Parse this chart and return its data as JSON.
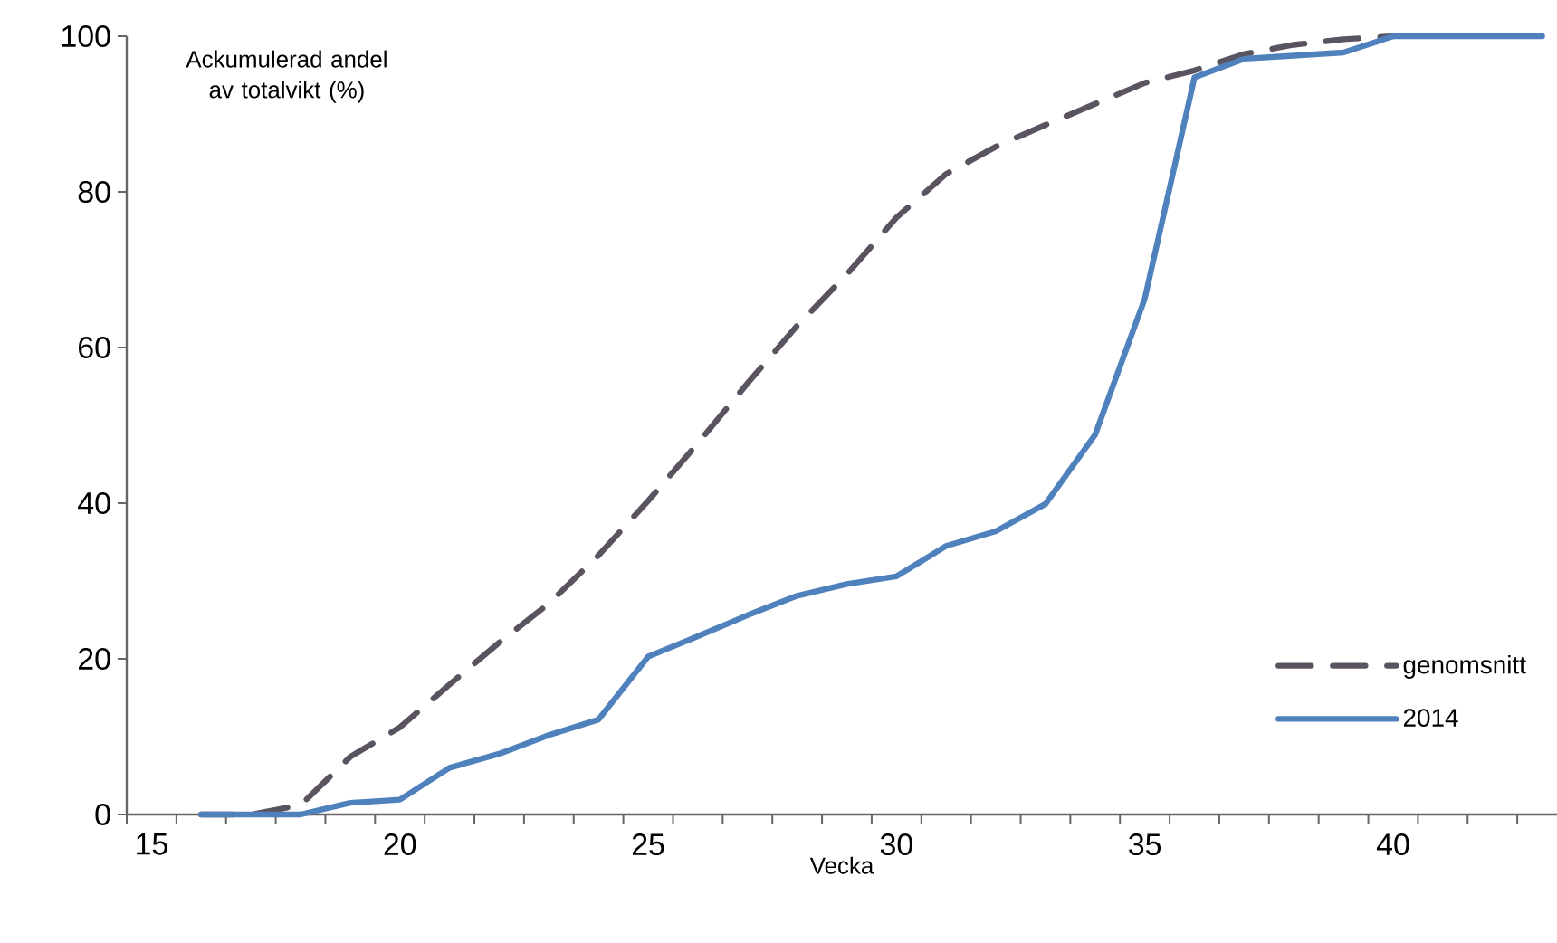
{
  "chart_data": {
    "type": "line",
    "ylabel": "Ackumulerad andel av totalvikt (%)",
    "xlabel": "Vecka",
    "x": [
      16,
      17,
      18,
      19,
      20,
      21,
      22,
      23,
      24,
      25,
      26,
      27,
      28,
      29,
      30,
      31,
      32,
      33,
      34,
      35,
      36,
      37,
      38,
      39,
      40,
      41,
      42,
      43
    ],
    "xlim": [
      14.5,
      43.3
    ],
    "xticks": [
      {
        "value": 14.5,
        "label": null
      },
      15,
      {
        "value": 15.5,
        "label": null
      },
      {
        "value": 16.5,
        "label": null
      },
      {
        "value": 17.5,
        "label": null
      },
      {
        "value": 18.5,
        "label": null
      },
      {
        "value": 19.5,
        "label": null
      },
      20,
      {
        "value": 20.5,
        "label": null
      },
      {
        "value": 21.5,
        "label": null
      },
      {
        "value": 22.5,
        "label": null
      },
      {
        "value": 23.5,
        "label": null
      },
      {
        "value": 24.5,
        "label": null
      },
      25,
      {
        "value": 25.5,
        "label": null
      },
      {
        "value": 26.5,
        "label": null
      },
      {
        "value": 27.5,
        "label": null
      },
      {
        "value": 28.5,
        "label": null
      },
      {
        "value": 29.5,
        "label": null
      },
      30,
      {
        "value": 30.5,
        "label": null
      },
      {
        "value": 31.5,
        "label": null
      },
      {
        "value": 32.5,
        "label": null
      },
      {
        "value": 33.5,
        "label": null
      },
      {
        "value": 34.5,
        "label": null
      },
      35,
      {
        "value": 35.5,
        "label": null
      },
      {
        "value": 36.5,
        "label": null
      },
      {
        "value": 37.5,
        "label": null
      },
      {
        "value": 38.5,
        "label": null
      },
      {
        "value": 39.5,
        "label": null
      },
      40,
      {
        "value": 40.5,
        "label": null
      },
      {
        "value": 41.5,
        "label": null
      },
      {
        "value": 42.5,
        "label": null
      }
    ],
    "ylim": [
      0,
      100
    ],
    "yticks": [
      0,
      20,
      40,
      60,
      80,
      100
    ],
    "legend": "bottom right",
    "series": [
      {
        "name": "genomsnitt",
        "color": "#5a5360",
        "line_style": "dashed",
        "values": [
          0,
          0,
          1.2,
          7.4,
          11.2,
          16.7,
          22.1,
          27.1,
          33.3,
          40.3,
          47.7,
          55.4,
          62.8,
          69.4,
          76.7,
          82.3,
          85.8,
          88.6,
          91.3,
          94,
          95.6,
          97.7,
          98.9,
          99.6,
          100,
          null,
          null,
          null
        ]
      },
      {
        "name": "2014",
        "color": "#4f81bd",
        "line_style": "solid",
        "values": [
          0,
          0,
          0,
          1.5,
          1.9,
          6,
          7.8,
          10.2,
          12.2,
          20.3,
          22.9,
          25.6,
          28.1,
          29.6,
          30.6,
          34.5,
          36.4,
          39.9,
          48.8,
          66.3,
          94.7,
          97.1,
          97.5,
          97.9,
          100,
          100,
          100,
          100
        ]
      }
    ]
  }
}
